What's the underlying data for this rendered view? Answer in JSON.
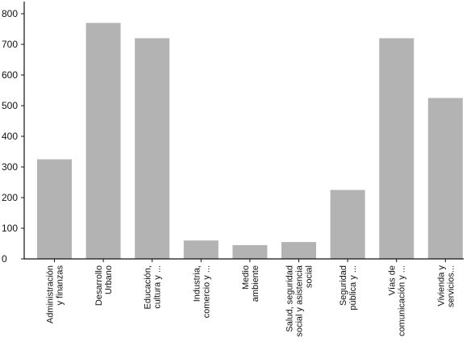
{
  "colors": {
    "bar": "#b3b3b3",
    "axis": "#111111",
    "background": "#ffffff"
  },
  "chart_data": {
    "type": "bar",
    "title": "",
    "xlabel": "",
    "ylabel": "",
    "ylim": [
      0,
      800
    ],
    "yticks": [
      0,
      100,
      200,
      300,
      400,
      500,
      600,
      700,
      800
    ],
    "grid": false,
    "legend": "none",
    "categories": [
      [
        "Administración",
        "y finanzas"
      ],
      [
        "Desarrollo",
        "Urbano"
      ],
      [
        "Educación,",
        "cultura y ..."
      ],
      [
        "Industria,",
        "comercio y ..."
      ],
      [
        "Medio",
        "ambiente"
      ],
      [
        "Salud, seguridad",
        "social y asistencia",
        "social"
      ],
      [
        "Seguridad",
        "pública y ..."
      ],
      [
        "Vías de",
        "comunicación y ..."
      ],
      [
        "Vivienda y",
        "servicios..."
      ]
    ],
    "values": [
      325,
      770,
      720,
      60,
      45,
      55,
      225,
      720,
      525
    ]
  }
}
